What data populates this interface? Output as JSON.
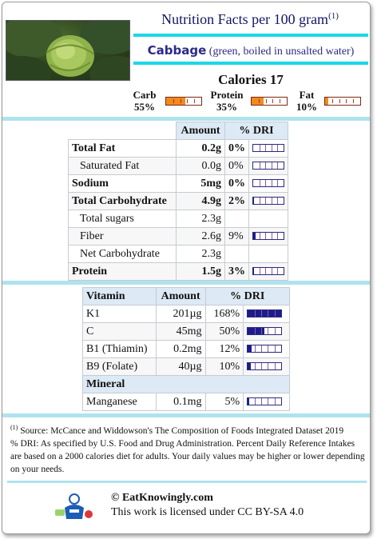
{
  "header": {
    "title": "Nutrition Facts per 100 gram",
    "title_sup": "(1)",
    "food_name": "Cabbage",
    "food_desc": "(green, boiled in unsalted water)",
    "calories_label": "Calories 17"
  },
  "macros": [
    {
      "name": "Carb",
      "pct": "55%",
      "fraction": 0.55
    },
    {
      "name": "Protein",
      "pct": "35%",
      "fraction": 0.35
    },
    {
      "name": "Fat",
      "pct": "10%",
      "fraction": 0.1
    }
  ],
  "nutrients": {
    "headers": [
      "",
      "Amount",
      "% DRI"
    ],
    "rows": [
      {
        "name": "Total Fat",
        "amount": "0.2g",
        "dri": "0%",
        "dri_fraction": 0.0,
        "bold": true
      },
      {
        "name": "Saturated Fat",
        "amount": "0.0g",
        "dri": "0%",
        "dri_fraction": 0.0,
        "bold": false
      },
      {
        "name": "Sodium",
        "amount": "5mg",
        "dri": "0%",
        "dri_fraction": 0.0,
        "bold": true
      },
      {
        "name": "Total Carbohydrate",
        "amount": "4.9g",
        "dri": "2%",
        "dri_fraction": 0.02,
        "bold": true
      },
      {
        "name": "Total sugars",
        "amount": "2.3g",
        "dri": "",
        "dri_fraction": null,
        "bold": false
      },
      {
        "name": "Fiber",
        "amount": "2.6g",
        "dri": "9%",
        "dri_fraction": 0.09,
        "bold": false
      },
      {
        "name": "Net Carbohydrate",
        "amount": "2.3g",
        "dri": "",
        "dri_fraction": null,
        "bold": false
      },
      {
        "name": "Protein",
        "amount": "1.5g",
        "dri": "3%",
        "dri_fraction": 0.03,
        "bold": true
      }
    ]
  },
  "vitamins": {
    "headers": [
      "Vitamin",
      "Amount",
      "% DRI"
    ],
    "rows": [
      {
        "name": "K1",
        "amount": "201µg",
        "dri": "168%",
        "dri_fraction": 1.0
      },
      {
        "name": "C",
        "amount": "45mg",
        "dri": "50%",
        "dri_fraction": 0.5
      },
      {
        "name": "B1 (Thiamin)",
        "amount": "0.2mg",
        "dri": "12%",
        "dri_fraction": 0.12
      },
      {
        "name": "B9 (Folate)",
        "amount": "40µg",
        "dri": "10%",
        "dri_fraction": 0.1
      }
    ],
    "mineral_header": "Mineral",
    "minerals": [
      {
        "name": "Manganese",
        "amount": "0.1mg",
        "dri": "5%",
        "dri_fraction": 0.05
      }
    ]
  },
  "footnote": {
    "sup": "(1)",
    "source": " Source: McCance and Widdowson's The Composition of Foods Integrated Dataset 2019",
    "dri_note": "% DRI: As specified by U.S. Food and Drug Administration. Percent Daily Reference Intakes are based on a 2000 calories diet for adults. Your daily values may be higher or lower depending on your needs."
  },
  "footer": {
    "site": "© EatKnowingly.com",
    "license": "This work is licensed under CC BY-SA 4.0"
  },
  "colors": {
    "title": "#151565",
    "accent_cyan": "#1ad7e8",
    "separator": "#aee3ee",
    "macro_fill": "#f28a1c",
    "dri_fill": "#1c1c8c",
    "header_bg": "#dde9f4"
  }
}
